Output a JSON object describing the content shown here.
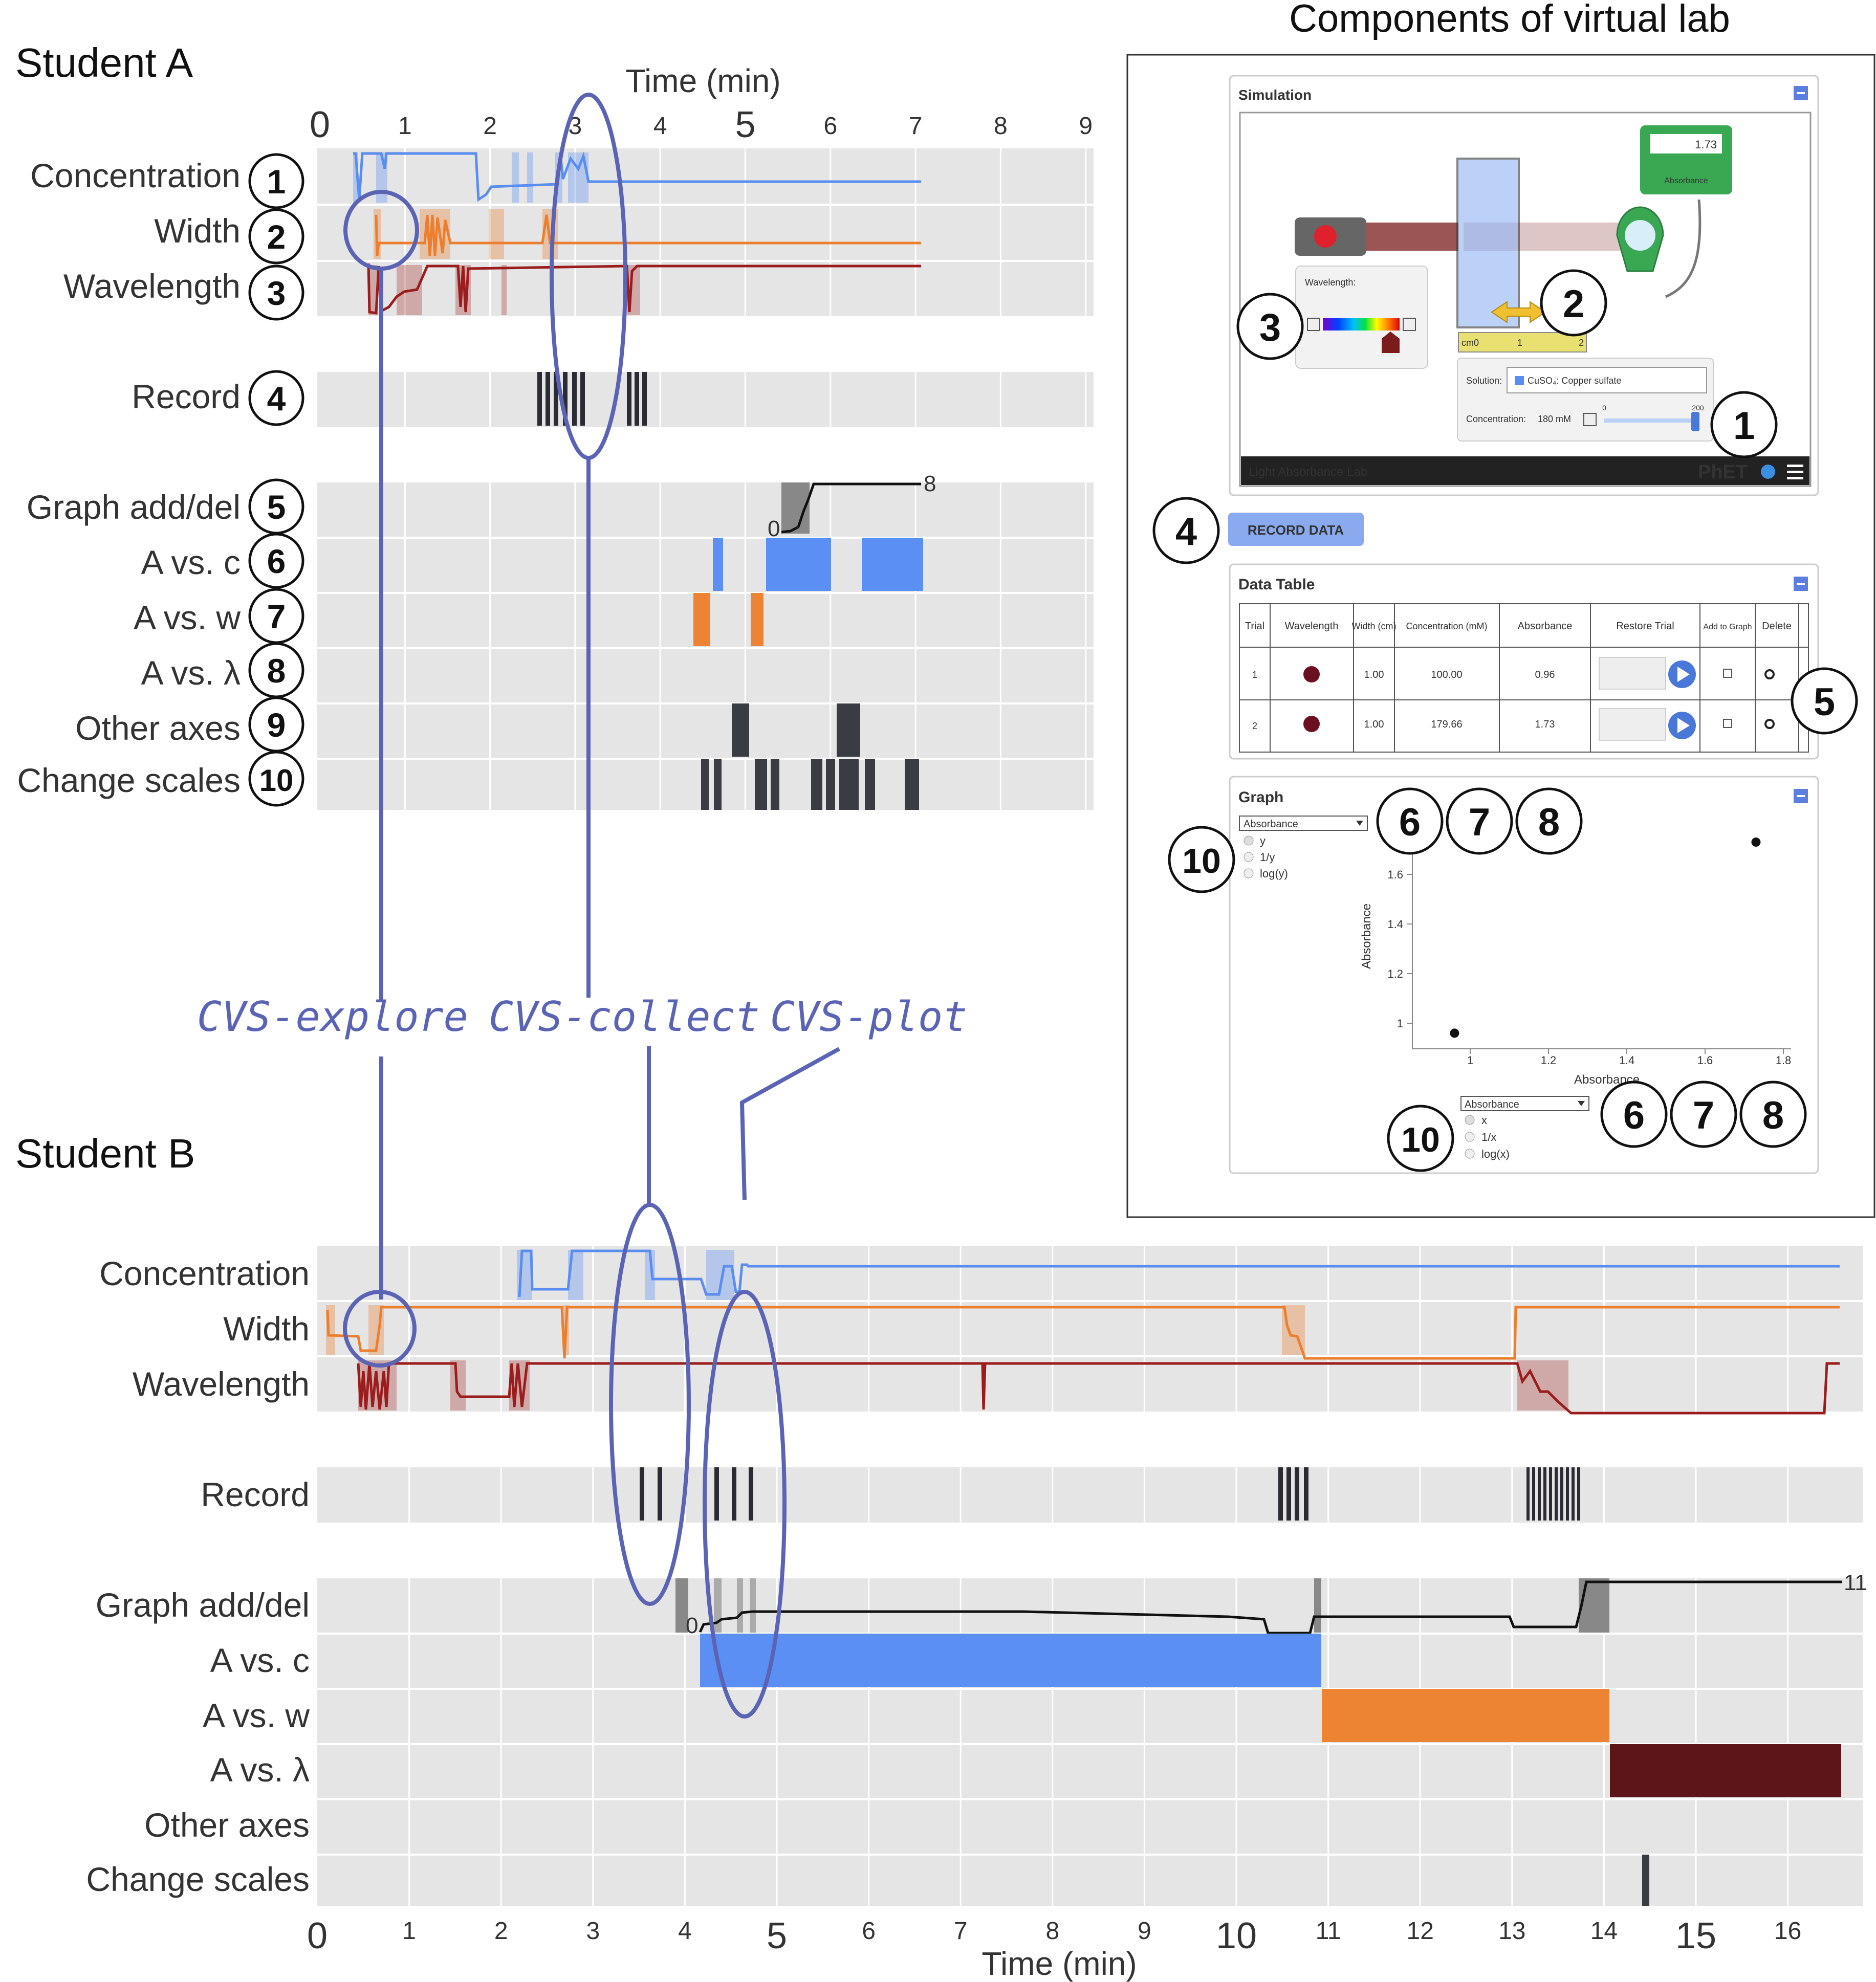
{
  "colors": {
    "concentration": "#5a8df0",
    "width": "#ec7f2f",
    "wavelength": "#9b1c1c",
    "record": "#2b2b33",
    "graph_avsc": "#5b8ff3",
    "graph_avsw": "#ec8434",
    "graph_avsl": "#5e1519",
    "dark": "#3a3c44",
    "annotation": "#5b63b5",
    "track_bg": "#e5e5e5"
  },
  "student_a": {
    "title": "Student A",
    "axis_label": "Time (min)",
    "ticks": [
      "0",
      "1",
      "2",
      "3",
      "4",
      "5",
      "6",
      "7",
      "8",
      "9"
    ],
    "rows": [
      {
        "label": "Concentration",
        "badge": "1"
      },
      {
        "label": "Width",
        "badge": "2"
      },
      {
        "label": "Wavelength",
        "badge": "3"
      },
      {
        "label": "Record",
        "badge": "4"
      },
      {
        "label": "Graph add/del",
        "badge": "5"
      },
      {
        "label": "A vs. c",
        "badge": "6"
      },
      {
        "label": "A vs. w",
        "badge": "7"
      },
      {
        "label": "A vs. λ",
        "badge": "8"
      },
      {
        "label": "Other axes",
        "badge": "9"
      },
      {
        "label": "Change scales",
        "badge": "10"
      }
    ],
    "graph_count_start": "0",
    "graph_count_end": "8"
  },
  "student_b": {
    "title": "Student B",
    "axis_label": "Time (min)",
    "ticks": [
      "0",
      "1",
      "2",
      "3",
      "4",
      "5",
      "6",
      "7",
      "8",
      "9",
      "10",
      "11",
      "12",
      "13",
      "14",
      "15",
      "16"
    ],
    "rows": [
      "Concentration",
      "Width",
      "Wavelength",
      "Record",
      "Graph add/del",
      "A vs. c",
      "A vs. w",
      "A vs. λ",
      "Other axes",
      "Change scales"
    ],
    "graph_count_start": "0",
    "graph_count_end": "11"
  },
  "annotations": {
    "explore": "CVS-explore",
    "collect": "CVS-collect",
    "plot": "CVS-plot"
  },
  "panel": {
    "title": "Components of virtual lab",
    "simulation": {
      "header": "Simulation",
      "meter_value": "1.73",
      "meter_label": "Absorbance",
      "wavelength_label": "Wavelength:",
      "ruler_unit": "cm",
      "ruler_ticks": [
        "0",
        "1",
        "2"
      ],
      "solution_label": "Solution:",
      "solution_value": "CuSO₄: Copper sulfate",
      "concentration_label": "Concentration:",
      "concentration_value": "180 mM",
      "slider_min": "0",
      "slider_max": "200",
      "footer": "Light Absorbance Lab",
      "logo": "PhET"
    },
    "record_button": "RECORD DATA",
    "data_table": {
      "header": "Data Table",
      "columns": [
        "Trial",
        "Wavelength",
        "Width (cm)",
        "Concentration (mM)",
        "Absorbance",
        "Restore Trial",
        "Add to Graph",
        "Delete"
      ],
      "rows": [
        {
          "trial": "1",
          "width": "1.00",
          "concentration": "100.00",
          "absorbance": "0.96"
        },
        {
          "trial": "2",
          "width": "1.00",
          "concentration": "179.66",
          "absorbance": "1.73"
        }
      ]
    },
    "graph": {
      "header": "Graph",
      "y_select": "Absorbance",
      "y_options": [
        "y",
        "1/y",
        "log(y)"
      ],
      "x_select": "Absorbance",
      "x_options": [
        "x",
        "1/x",
        "log(x)"
      ],
      "y_axis_label": "Absorbance",
      "x_axis_label": "Absorbance",
      "y_ticks": [
        "1",
        "1.2",
        "1.4",
        "1.6"
      ],
      "x_ticks": [
        "1",
        "1.2",
        "1.4",
        "1.6",
        "1.8"
      ],
      "points": [
        {
          "x": 0.96,
          "y": 0.96
        },
        {
          "x": 1.73,
          "y": 1.73
        }
      ]
    }
  }
}
